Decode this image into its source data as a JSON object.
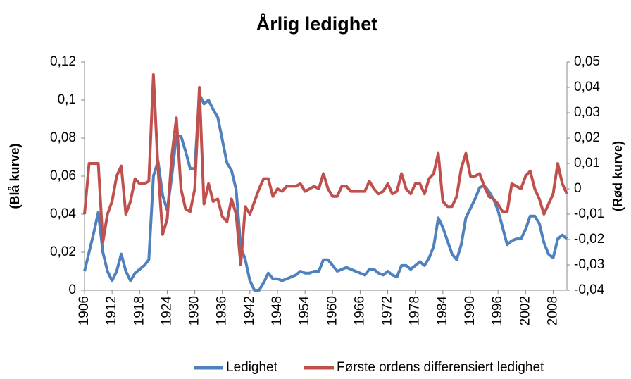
{
  "chart_data": {
    "type": "line",
    "title": "Årlig ledighet",
    "y_label": "(Blå kurve)",
    "y2_label": "(Rød kurve)",
    "x": [
      1906,
      1907,
      1908,
      1909,
      1910,
      1911,
      1912,
      1913,
      1914,
      1915,
      1916,
      1917,
      1918,
      1919,
      1920,
      1921,
      1922,
      1923,
      1924,
      1925,
      1926,
      1927,
      1928,
      1929,
      1930,
      1931,
      1932,
      1933,
      1934,
      1935,
      1936,
      1937,
      1938,
      1939,
      1940,
      1941,
      1942,
      1943,
      1944,
      1945,
      1946,
      1947,
      1948,
      1949,
      1950,
      1951,
      1952,
      1953,
      1954,
      1955,
      1956,
      1957,
      1958,
      1959,
      1960,
      1961,
      1962,
      1963,
      1964,
      1965,
      1966,
      1967,
      1968,
      1969,
      1970,
      1971,
      1972,
      1973,
      1974,
      1975,
      1976,
      1977,
      1978,
      1979,
      1980,
      1981,
      1982,
      1983,
      1984,
      1985,
      1986,
      1987,
      1988,
      1989,
      1990,
      1991,
      1992,
      1993,
      1994,
      1995,
      1996,
      1997,
      1998,
      1999,
      2000,
      2001,
      2002,
      2003,
      2004,
      2005,
      2006,
      2007,
      2008,
      2009,
      2010,
      2011
    ],
    "xlim": [
      1906,
      2011
    ],
    "xticks": [
      1906,
      1912,
      1918,
      1924,
      1930,
      1936,
      1942,
      1948,
      1954,
      1960,
      1966,
      1972,
      1978,
      1984,
      1990,
      1996,
      2002,
      2008
    ],
    "ylim": [
      0,
      0.12
    ],
    "yticks": [
      0,
      {
        "value": 0.02,
        "label": "0,02"
      },
      {
        "value": 0.04,
        "label": "0,04"
      },
      {
        "value": 0.06,
        "label": "0,06"
      },
      {
        "value": 0.08,
        "label": "0,08"
      },
      {
        "value": 0.1,
        "label": "0,1"
      },
      {
        "value": 0.12,
        "label": "0,12"
      }
    ],
    "y2lim": [
      -0.04,
      0.05
    ],
    "y2ticks": [
      {
        "value": -0.04,
        "label": "-0,04"
      },
      {
        "value": -0.03,
        "label": "-0,03"
      },
      {
        "value": -0.02,
        "label": "-0,02"
      },
      {
        "value": -0.01,
        "label": "-0,01"
      },
      0,
      {
        "value": 0.01,
        "label": "0,01"
      },
      {
        "value": 0.02,
        "label": "0,02"
      },
      {
        "value": 0.03,
        "label": "0,03"
      },
      {
        "value": 0.04,
        "label": "0,04"
      },
      {
        "value": 0.05,
        "label": "0,05"
      }
    ],
    "legend": "bottom",
    "series": [
      {
        "name": "Ledighet",
        "color": "#4f81bd",
        "axis": "y",
        "values": [
          0.01,
          0.02,
          0.03,
          0.041,
          0.02,
          0.01,
          0.005,
          0.01,
          0.019,
          0.01,
          0.005,
          0.009,
          0.011,
          0.013,
          0.016,
          0.06,
          0.068,
          0.05,
          0.042,
          0.06,
          0.081,
          0.081,
          0.073,
          0.064,
          0.064,
          0.103,
          0.098,
          0.1,
          0.095,
          0.091,
          0.079,
          0.067,
          0.063,
          0.053,
          0.023,
          0.016,
          0.005,
          0.0,
          0.0,
          0.004,
          0.009,
          0.006,
          0.006,
          0.005,
          0.006,
          0.007,
          0.008,
          0.01,
          0.009,
          0.009,
          0.01,
          0.01,
          0.016,
          0.016,
          0.013,
          0.01,
          0.011,
          0.012,
          0.011,
          0.01,
          0.009,
          0.008,
          0.011,
          0.011,
          0.009,
          0.008,
          0.01,
          0.008,
          0.007,
          0.013,
          0.013,
          0.011,
          0.013,
          0.015,
          0.013,
          0.017,
          0.023,
          0.038,
          0.033,
          0.026,
          0.019,
          0.016,
          0.024,
          0.038,
          0.043,
          0.048,
          0.054,
          0.055,
          0.052,
          0.048,
          0.042,
          0.033,
          0.024,
          0.026,
          0.027,
          0.027,
          0.032,
          0.039,
          0.039,
          0.035,
          0.025,
          0.019,
          0.017,
          0.027,
          0.029,
          0.027
        ]
      },
      {
        "name": "Første ordens differensiert ledighet",
        "color": "#c0504d",
        "axis": "y2",
        "values": [
          -0.01,
          0.01,
          0.01,
          0.01,
          -0.021,
          -0.01,
          -0.005,
          0.005,
          0.009,
          -0.01,
          -0.005,
          0.004,
          0.002,
          0.002,
          0.003,
          0.045,
          0.008,
          -0.018,
          -0.012,
          0.013,
          0.028,
          0.0,
          -0.008,
          -0.009,
          0.0,
          0.04,
          -0.006,
          0.002,
          -0.005,
          -0.004,
          -0.011,
          -0.013,
          -0.004,
          -0.01,
          -0.03,
          -0.007,
          -0.01,
          -0.005,
          0.0,
          0.004,
          0.004,
          -0.003,
          0.0,
          -0.001,
          0.001,
          0.001,
          0.001,
          0.002,
          -0.001,
          0.0,
          0.001,
          0.0,
          0.006,
          0.0,
          -0.003,
          -0.003,
          0.001,
          0.001,
          -0.001,
          -0.001,
          -0.001,
          -0.001,
          0.003,
          0.0,
          -0.002,
          -0.001,
          0.002,
          -0.002,
          -0.001,
          0.006,
          0.0,
          -0.002,
          0.002,
          0.002,
          -0.002,
          0.004,
          0.006,
          0.014,
          -0.005,
          -0.007,
          -0.007,
          -0.003,
          0.008,
          0.014,
          0.005,
          0.005,
          0.006,
          0.001,
          -0.003,
          -0.004,
          -0.006,
          -0.009,
          -0.009,
          0.002,
          0.001,
          0.0,
          0.005,
          0.007,
          0.0,
          -0.004,
          -0.01,
          -0.006,
          -0.002,
          0.01,
          0.002,
          -0.002
        ]
      }
    ]
  }
}
